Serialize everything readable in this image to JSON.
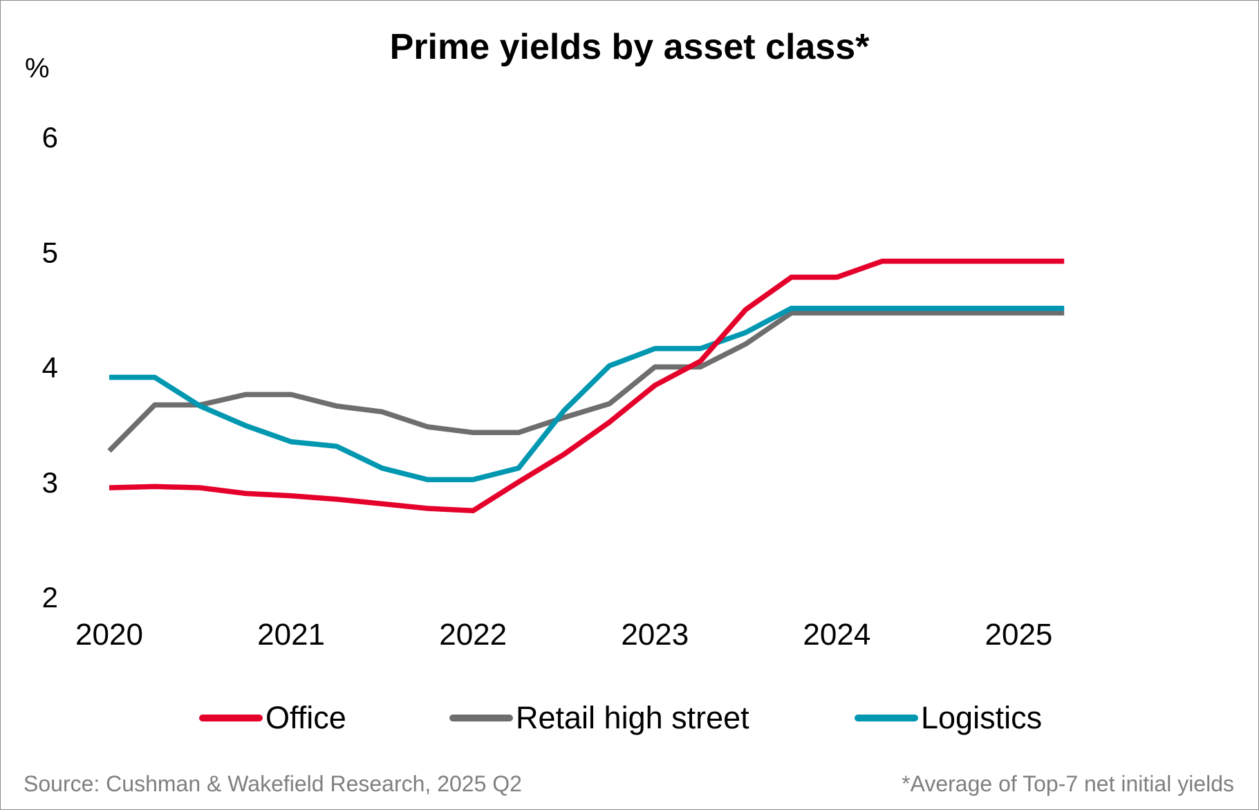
{
  "chart_data": {
    "type": "line",
    "title": "Prime yields by asset class*",
    "ylabel": "%",
    "xlabel": "",
    "ylim": [
      2,
      6
    ],
    "yticks": [
      2,
      3,
      4,
      5,
      6
    ],
    "xlim": [
      2020,
      2025.5
    ],
    "xticks": [
      "2020",
      "2021",
      "2022",
      "2023",
      "2024",
      "2025"
    ],
    "x": [
      2020.0,
      2020.25,
      2020.5,
      2020.75,
      2021.0,
      2021.25,
      2021.5,
      2021.75,
      2022.0,
      2022.25,
      2022.5,
      2022.75,
      2023.0,
      2023.25,
      2023.5,
      2023.75,
      2024.0,
      2024.25,
      2024.5,
      2024.75,
      2025.0,
      2025.25
    ],
    "series": [
      {
        "name": "Office",
        "color": "#E4002B",
        "values": [
          2.95,
          2.96,
          2.95,
          2.9,
          2.88,
          2.85,
          2.81,
          2.77,
          2.75,
          3.0,
          3.24,
          3.52,
          3.84,
          4.05,
          4.5,
          4.78,
          4.78,
          4.92,
          4.92,
          4.92,
          4.92,
          4.92
        ]
      },
      {
        "name": "Retail high street",
        "color": "#6E6E6E",
        "values": [
          3.27,
          3.67,
          3.67,
          3.76,
          3.76,
          3.66,
          3.61,
          3.48,
          3.43,
          3.43,
          3.56,
          3.68,
          4.0,
          4.0,
          4.2,
          4.47,
          4.47,
          4.47,
          4.47,
          4.47,
          4.47,
          4.47
        ]
      },
      {
        "name": "Logistics",
        "color": "#0097B1",
        "values": [
          3.91,
          3.91,
          3.66,
          3.49,
          3.35,
          3.31,
          3.12,
          3.02,
          3.02,
          3.12,
          3.62,
          4.01,
          4.16,
          4.16,
          4.3,
          4.51,
          4.51,
          4.51,
          4.51,
          4.51,
          4.51,
          4.51
        ]
      }
    ],
    "legend_position": "bottom"
  },
  "footer": {
    "source": "Source: Cushman & Wakefield Research, 2025 Q2",
    "note": "*Average of Top-7 net initial yields"
  }
}
